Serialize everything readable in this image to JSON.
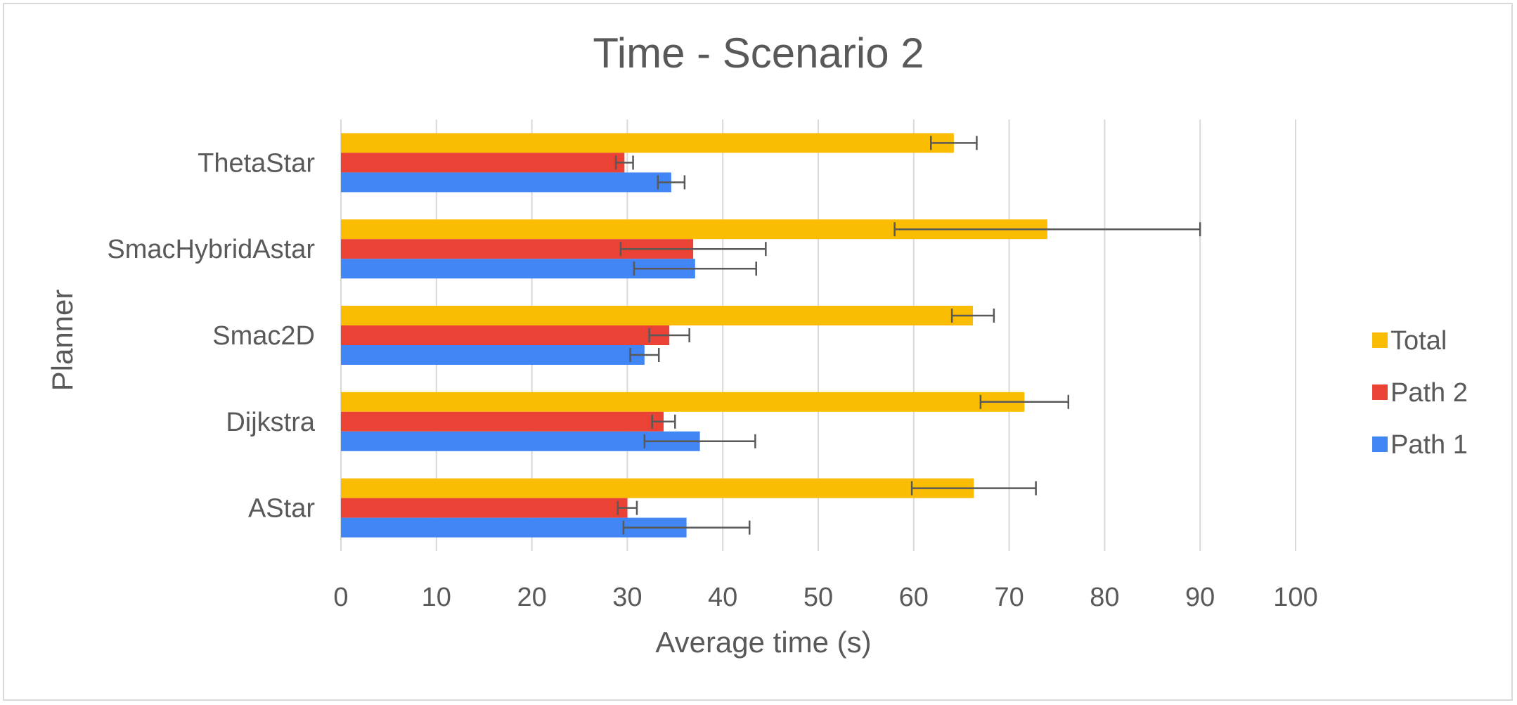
{
  "chart_data": {
    "type": "bar",
    "orientation": "horizontal",
    "title": "Time - Scenario 2",
    "xlabel": "Average time (s)",
    "ylabel": "Planner",
    "xlim": [
      0,
      100
    ],
    "xticks": [
      0,
      10,
      20,
      30,
      40,
      50,
      60,
      70,
      80,
      90,
      100
    ],
    "grid": "vertical",
    "legend_position": "right",
    "categories": [
      "ThetaStar",
      "SmacHybridAstar",
      "Smac2D",
      "Dijkstra",
      "AStar"
    ],
    "series": [
      {
        "name": "Total",
        "color": "#FBBC04",
        "values": [
          64.2,
          74.0,
          66.2,
          71.6,
          66.3
        ],
        "errors": [
          2.4,
          16.0,
          2.2,
          4.6,
          6.5
        ]
      },
      {
        "name": "Path 2",
        "color": "#EA4335",
        "values": [
          29.7,
          36.9,
          34.4,
          33.8,
          30.0
        ],
        "errors": [
          0.9,
          7.6,
          2.1,
          1.2,
          1.0
        ]
      },
      {
        "name": "Path 1",
        "color": "#4285F4",
        "values": [
          34.6,
          37.1,
          31.8,
          37.6,
          36.2
        ],
        "errors": [
          1.4,
          6.4,
          1.5,
          5.8,
          6.6
        ]
      }
    ]
  }
}
